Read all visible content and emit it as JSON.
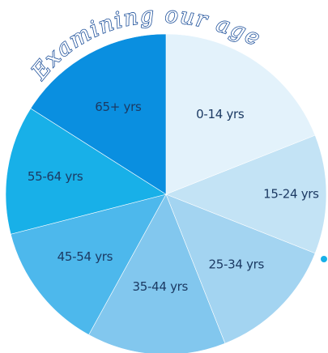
{
  "chart_data": {
    "type": "pie",
    "title": "Examining our age",
    "categories": [
      "0-14 yrs",
      "15-24 yrs",
      "25-34 yrs",
      "35-44 yrs",
      "45-54 yrs",
      "55-64 yrs",
      "65+ yrs"
    ],
    "values": [
      19,
      12,
      13,
      14,
      13,
      13,
      16
    ],
    "colors": [
      "#e3f2fb",
      "#c3e3f5",
      "#a3d4f1",
      "#82c7ee",
      "#4db8ec",
      "#18b0e8",
      "#0a8fe0"
    ],
    "legend": "none"
  }
}
